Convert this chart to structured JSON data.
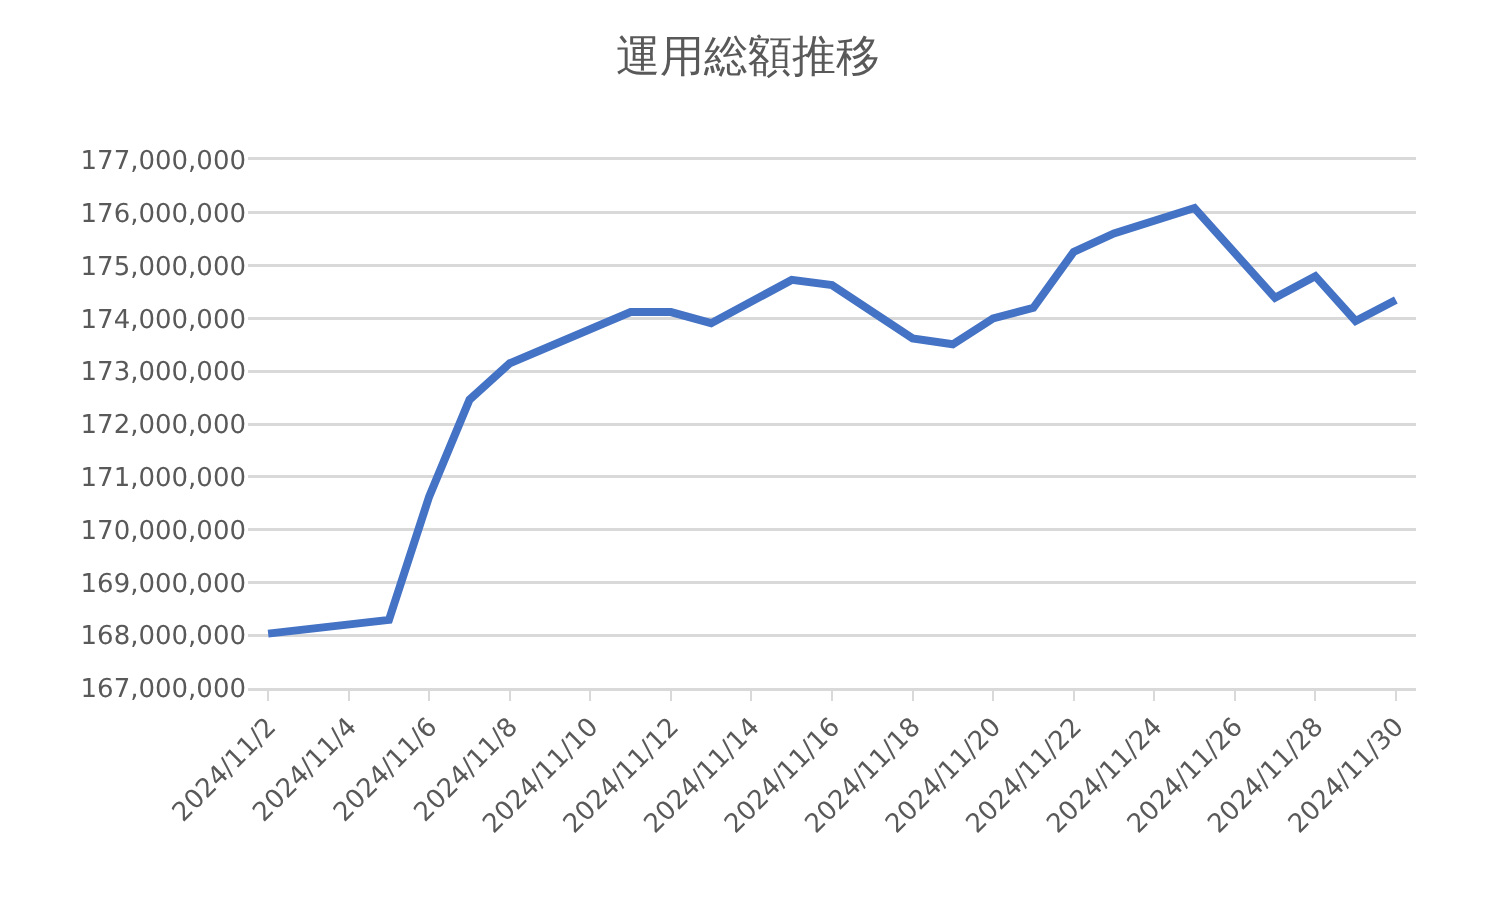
{
  "chart_data": {
    "type": "line",
    "title": "運用総額推移",
    "x": [
      "2024-11-02",
      "2024-11-05",
      "2024-11-06",
      "2024-11-07",
      "2024-11-08",
      "2024-11-11",
      "2024-11-12",
      "2024-11-13",
      "2024-11-15",
      "2024-11-16",
      "2024-11-18",
      "2024-11-19",
      "2024-11-20",
      "2024-11-21",
      "2024-11-22",
      "2024-11-23",
      "2024-11-25",
      "2024-11-27",
      "2024-11-28",
      "2024-11-29",
      "2024-11-30"
    ],
    "series": [
      {
        "color": "#4472c4",
        "values": [
          168030000,
          168290000,
          170630000,
          172460000,
          173150000,
          174120000,
          174120000,
          173910000,
          174730000,
          174630000,
          173620000,
          173510000,
          174000000,
          174200000,
          175260000,
          175610000,
          176090000,
          174390000,
          174800000,
          173950000,
          174350000
        ]
      }
    ],
    "xlim": [
      "2024-11-01T12:00",
      "2024-11-30T12:00"
    ],
    "xticks": [
      {
        "value": "2024-11-02",
        "label": "2024/11/2"
      },
      {
        "value": "2024-11-04",
        "label": "2024/11/4"
      },
      {
        "value": "2024-11-06",
        "label": "2024/11/6"
      },
      {
        "value": "2024-11-08",
        "label": "2024/11/8"
      },
      {
        "value": "2024-11-10",
        "label": "2024/11/10"
      },
      {
        "value": "2024-11-12",
        "label": "2024/11/12"
      },
      {
        "value": "2024-11-14",
        "label": "2024/11/14"
      },
      {
        "value": "2024-11-16",
        "label": "2024/11/16"
      },
      {
        "value": "2024-11-18",
        "label": "2024/11/18"
      },
      {
        "value": "2024-11-20",
        "label": "2024/11/20"
      },
      {
        "value": "2024-11-22",
        "label": "2024/11/22"
      },
      {
        "value": "2024-11-24",
        "label": "2024/11/24"
      },
      {
        "value": "2024-11-26",
        "label": "2024/11/26"
      },
      {
        "value": "2024-11-28",
        "label": "2024/11/28"
      },
      {
        "value": "2024-11-30",
        "label": "2024/11/30"
      }
    ],
    "ylim": [
      167000000,
      177000000
    ],
    "yticks": [
      {
        "value": 167000000,
        "label": "167,000,000"
      },
      {
        "value": 168000000,
        "label": "168,000,000"
      },
      {
        "value": 169000000,
        "label": "169,000,000"
      },
      {
        "value": 170000000,
        "label": "170,000,000"
      },
      {
        "value": 171000000,
        "label": "171,000,000"
      },
      {
        "value": 172000000,
        "label": "172,000,000"
      },
      {
        "value": 173000000,
        "label": "173,000,000"
      },
      {
        "value": 174000000,
        "label": "174,000,000"
      },
      {
        "value": 175000000,
        "label": "175,000,000"
      },
      {
        "value": 176000000,
        "label": "176,000,000"
      },
      {
        "value": 177000000,
        "label": "177,000,000"
      }
    ],
    "grid": "y",
    "marker": "none",
    "line_style": "solid"
  }
}
